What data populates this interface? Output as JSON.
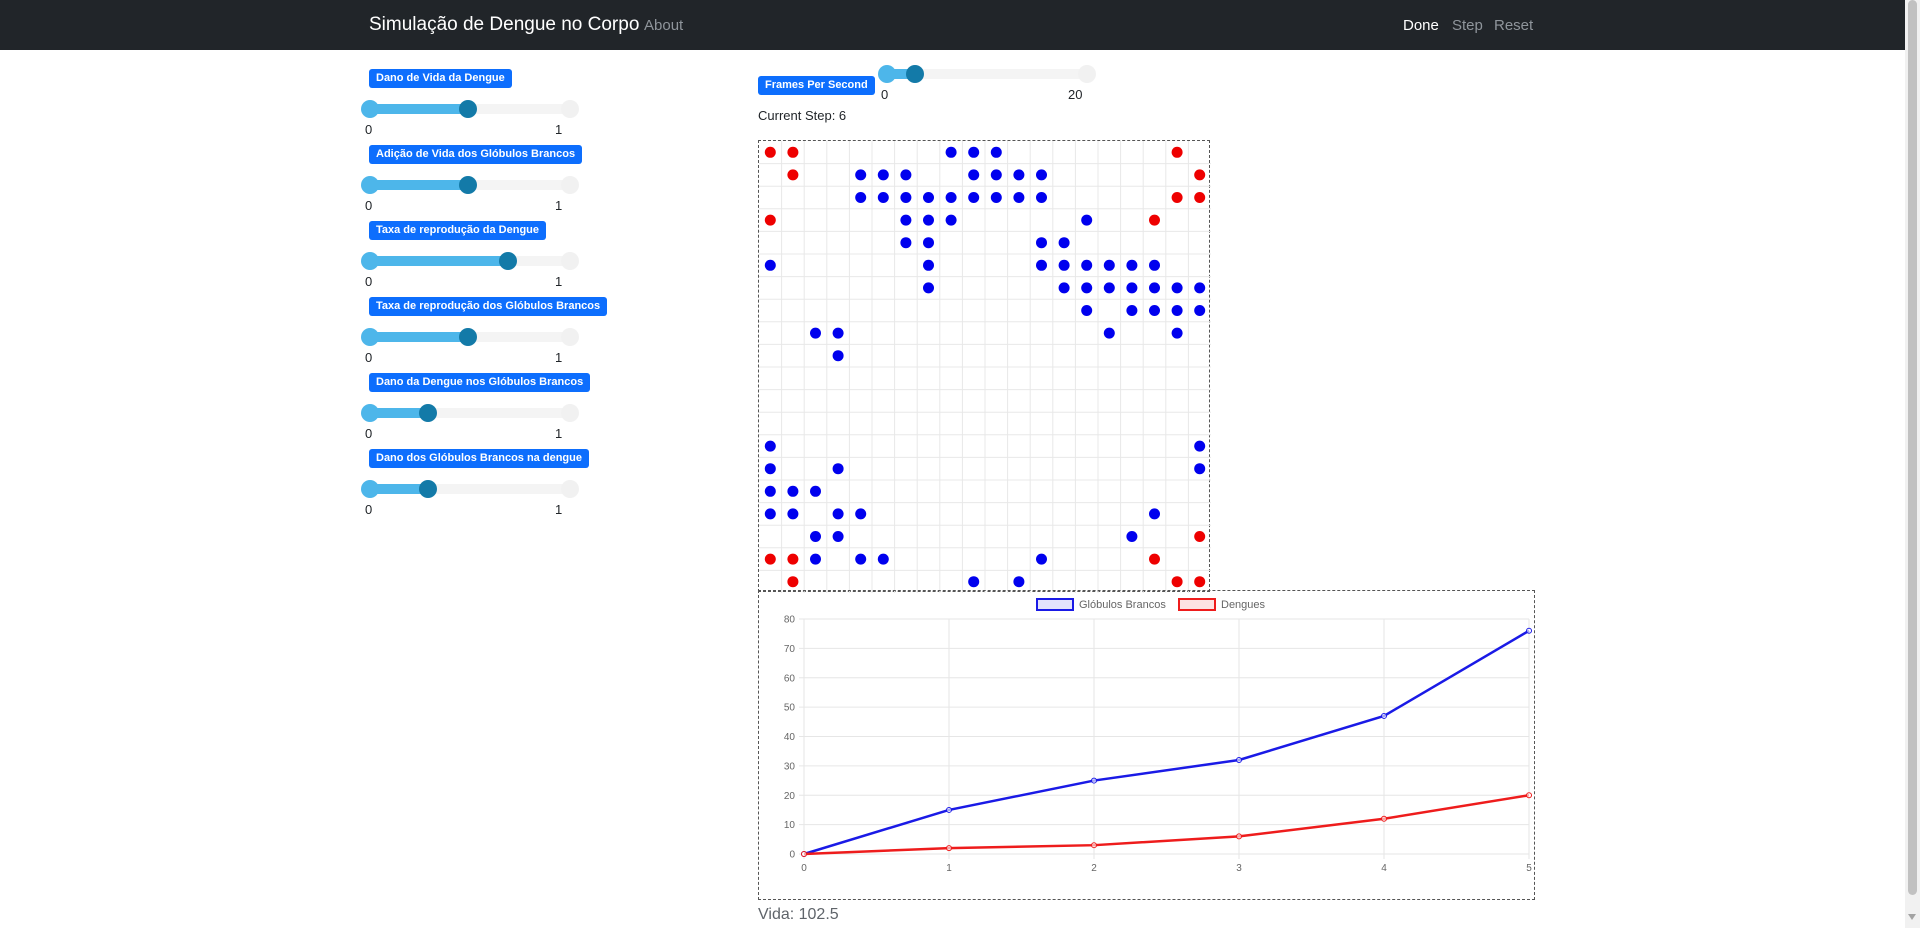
{
  "navbar": {
    "brand": "Simulação de Dengue no Corpo",
    "about": "About",
    "done": "Done",
    "step": "Step",
    "reset": "Reset"
  },
  "params": [
    {
      "label": "Dano de Vida da Dengue",
      "value": 0.5,
      "min": "0",
      "max": "1"
    },
    {
      "label": "Adição de Vida dos Glóbulos Brancos",
      "value": 0.5,
      "min": "0",
      "max": "1"
    },
    {
      "label": "Taxa de reprodução da Dengue",
      "value": 0.7,
      "min": "0",
      "max": "1"
    },
    {
      "label": "Taxa de reprodução dos Glóbulos Brancos",
      "value": 0.5,
      "min": "0",
      "max": "1"
    },
    {
      "label": "Dano da Dengue nos Glóbulos Brancos",
      "value": 0.3,
      "min": "0",
      "max": "1"
    },
    {
      "label": "Dano dos Glóbulos Brancos na dengue",
      "value": 0.3,
      "min": "0",
      "max": "1"
    }
  ],
  "fps": {
    "label": "Frames Per Second",
    "value": 3,
    "min": "0",
    "max": "20"
  },
  "current_step": "Current Step: 6",
  "vida": "Vida: 102.5",
  "grid": {
    "size": 20,
    "colors": {
      "blue": "#0000ee",
      "red": "#ee0000"
    },
    "blue": [
      [
        8,
        0
      ],
      [
        9,
        0
      ],
      [
        10,
        0
      ],
      [
        4,
        1
      ],
      [
        5,
        1
      ],
      [
        6,
        1
      ],
      [
        9,
        1
      ],
      [
        10,
        1
      ],
      [
        11,
        1
      ],
      [
        12,
        1
      ],
      [
        4,
        2
      ],
      [
        5,
        2
      ],
      [
        6,
        2
      ],
      [
        7,
        2
      ],
      [
        8,
        2
      ],
      [
        9,
        2
      ],
      [
        10,
        2
      ],
      [
        11,
        2
      ],
      [
        12,
        2
      ],
      [
        6,
        3
      ],
      [
        7,
        3
      ],
      [
        8,
        3
      ],
      [
        14,
        3
      ],
      [
        6,
        4
      ],
      [
        7,
        4
      ],
      [
        12,
        4
      ],
      [
        13,
        4
      ],
      [
        0,
        5
      ],
      [
        7,
        5
      ],
      [
        12,
        5
      ],
      [
        13,
        5
      ],
      [
        14,
        5
      ],
      [
        15,
        5
      ],
      [
        16,
        5
      ],
      [
        17,
        5
      ],
      [
        7,
        6
      ],
      [
        13,
        6
      ],
      [
        14,
        6
      ],
      [
        15,
        6
      ],
      [
        16,
        6
      ],
      [
        17,
        6
      ],
      [
        18,
        6
      ],
      [
        19,
        6
      ],
      [
        14,
        7
      ],
      [
        16,
        7
      ],
      [
        17,
        7
      ],
      [
        18,
        7
      ],
      [
        19,
        7
      ],
      [
        2,
        8
      ],
      [
        3,
        8
      ],
      [
        15,
        8
      ],
      [
        18,
        8
      ],
      [
        3,
        9
      ],
      [
        0,
        13
      ],
      [
        19,
        13
      ],
      [
        0,
        14
      ],
      [
        3,
        14
      ],
      [
        19,
        14
      ],
      [
        0,
        15
      ],
      [
        1,
        15
      ],
      [
        2,
        15
      ],
      [
        0,
        16
      ],
      [
        1,
        16
      ],
      [
        3,
        16
      ],
      [
        4,
        16
      ],
      [
        17,
        16
      ],
      [
        2,
        17
      ],
      [
        3,
        17
      ],
      [
        16,
        17
      ],
      [
        2,
        18
      ],
      [
        4,
        18
      ],
      [
        5,
        18
      ],
      [
        12,
        18
      ],
      [
        9,
        19
      ],
      [
        11,
        19
      ]
    ],
    "red": [
      [
        0,
        0
      ],
      [
        1,
        0
      ],
      [
        18,
        0
      ],
      [
        1,
        1
      ],
      [
        19,
        1
      ],
      [
        18,
        2
      ],
      [
        19,
        2
      ],
      [
        0,
        3
      ],
      [
        17,
        3
      ],
      [
        19,
        17
      ],
      [
        0,
        18
      ],
      [
        1,
        18
      ],
      [
        17,
        18
      ],
      [
        1,
        19
      ],
      [
        18,
        19
      ],
      [
        19,
        19
      ]
    ]
  },
  "chart_data": {
    "type": "line",
    "x": [
      0,
      1,
      2,
      3,
      4,
      5
    ],
    "ylim": [
      0,
      80
    ],
    "yticks": [
      0,
      10,
      20,
      30,
      40,
      50,
      60,
      70,
      80
    ],
    "grid": true,
    "legend_position": "top",
    "series": [
      {
        "name": "Glóbulos Brancos",
        "color": "#1a1ae6",
        "values": [
          0,
          15,
          25,
          32,
          47,
          76
        ]
      },
      {
        "name": "Dengues",
        "color": "#ee1c1c",
        "values": [
          0,
          2,
          3,
          6,
          12,
          20
        ]
      }
    ]
  }
}
